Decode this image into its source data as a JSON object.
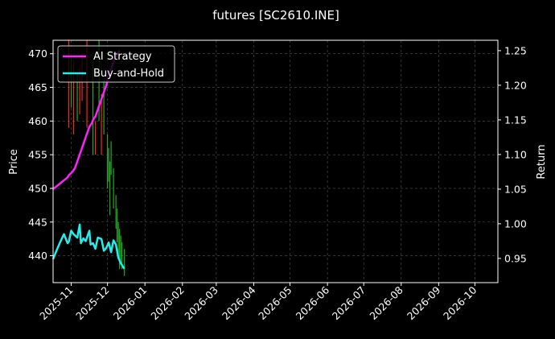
{
  "chart_data": {
    "type": "line",
    "title": "futures [SC2610.INE]",
    "xlabel": "",
    "ylabel": "Price",
    "y2label": "Return",
    "x_ticks": [
      "2025-11",
      "2025-12",
      "2026-01",
      "2026-02",
      "2026-03",
      "2026-04",
      "2026-05",
      "2026-06",
      "2026-07",
      "2026-08",
      "2026-09",
      "2026-10"
    ],
    "xlim": [
      "2025-10-17",
      "2026-10-20"
    ],
    "y_ticks": [
      440,
      445,
      450,
      455,
      460,
      465,
      470
    ],
    "ylim": [
      436,
      472
    ],
    "y2_ticks": [
      0.95,
      1.0,
      1.05,
      1.1,
      1.15,
      1.2,
      1.25
    ],
    "y2lim": [
      0.915,
      1.265
    ],
    "grid": true,
    "legend": {
      "placement": "top-left",
      "entries": [
        "AI Strategy",
        "Buy-and-Hold"
      ]
    },
    "colors": {
      "ai": "#ff22ff",
      "bh": "#22eeee",
      "up": "#ff2222",
      "down": "#22aa22",
      "background": "#000000"
    },
    "series": [
      {
        "name": "AI Strategy",
        "axis": "right",
        "x": [
          "2025-10-17",
          "2025-10-29",
          "2025-10-30",
          "2025-11-02",
          "2025-11-04",
          "2025-11-05",
          "2025-11-07",
          "2025-11-09",
          "2025-11-10",
          "2025-11-12",
          "2025-11-13",
          "2025-11-14",
          "2025-11-16",
          "2025-11-18",
          "2025-11-19",
          "2025-11-21",
          "2025-11-23",
          "2025-11-24",
          "2025-11-26",
          "2025-11-28",
          "2025-11-30",
          "2025-12-02",
          "2025-12-03",
          "2025-12-05",
          "2025-12-07",
          "2025-12-09",
          "2025-12-11"
        ],
        "values": [
          1.05,
          1.067,
          1.07,
          1.075,
          1.08,
          1.085,
          1.095,
          1.105,
          1.11,
          1.12,
          1.125,
          1.13,
          1.14,
          1.145,
          1.15,
          1.155,
          1.165,
          1.17,
          1.18,
          1.19,
          1.2,
          1.215,
          1.22,
          1.228,
          1.238,
          1.245,
          1.25
        ]
      },
      {
        "name": "Buy-and-Hold",
        "axis": "right",
        "x": [
          "2025-10-17",
          "2025-10-20",
          "2025-10-23",
          "2025-10-26",
          "2025-10-29",
          "2025-10-30",
          "2025-11-01",
          "2025-11-03",
          "2025-11-06",
          "2025-11-08",
          "2025-11-09",
          "2025-11-11",
          "2025-11-13",
          "2025-11-16",
          "2025-11-17",
          "2025-11-19",
          "2025-11-21",
          "2025-11-23",
          "2025-11-26",
          "2025-11-28",
          "2025-11-30",
          "2025-12-02",
          "2025-12-04",
          "2025-12-06",
          "2025-12-08",
          "2025-12-10",
          "2025-12-12",
          "2025-12-15"
        ],
        "values": [
          0.949,
          0.962,
          0.974,
          0.985,
          0.972,
          0.974,
          0.99,
          0.985,
          0.98,
          0.999,
          0.972,
          0.979,
          0.975,
          0.99,
          0.97,
          0.972,
          0.964,
          0.98,
          0.978,
          0.961,
          0.965,
          0.973,
          0.959,
          0.976,
          0.97,
          0.951,
          0.943,
          0.935
        ]
      }
    ],
    "candles": {
      "axis": "left",
      "x": [
        "2025-10-30",
        "2025-11-01",
        "2025-11-03",
        "2025-11-06",
        "2025-11-08",
        "2025-11-10",
        "2025-11-14",
        "2025-11-19",
        "2025-11-21",
        "2025-11-24",
        "2025-11-26",
        "2025-11-28",
        "2025-12-01",
        "2025-12-02",
        "2025-12-03",
        "2025-12-04",
        "2025-12-06",
        "2025-12-08",
        "2025-12-09",
        "2025-12-10",
        "2025-12-11",
        "2025-12-12",
        "2025-12-13",
        "2025-12-15"
      ],
      "high": [
        472,
        470,
        469,
        467,
        468,
        470,
        472,
        469,
        460,
        472,
        464,
        466,
        458,
        456,
        454,
        457,
        453,
        449,
        447,
        445,
        444,
        443,
        442,
        441
      ],
      "low": [
        459,
        462,
        458,
        460,
        461,
        463,
        459,
        455,
        455,
        460,
        455,
        458,
        450,
        451,
        446,
        452,
        447,
        444,
        442,
        440,
        438,
        439,
        438,
        437
      ],
      "up": [
        true,
        false,
        true,
        false,
        true,
        true,
        true,
        false,
        true,
        false,
        true,
        false,
        false,
        false,
        false,
        false,
        false,
        false,
        false,
        false,
        false,
        false,
        false,
        false
      ]
    }
  }
}
